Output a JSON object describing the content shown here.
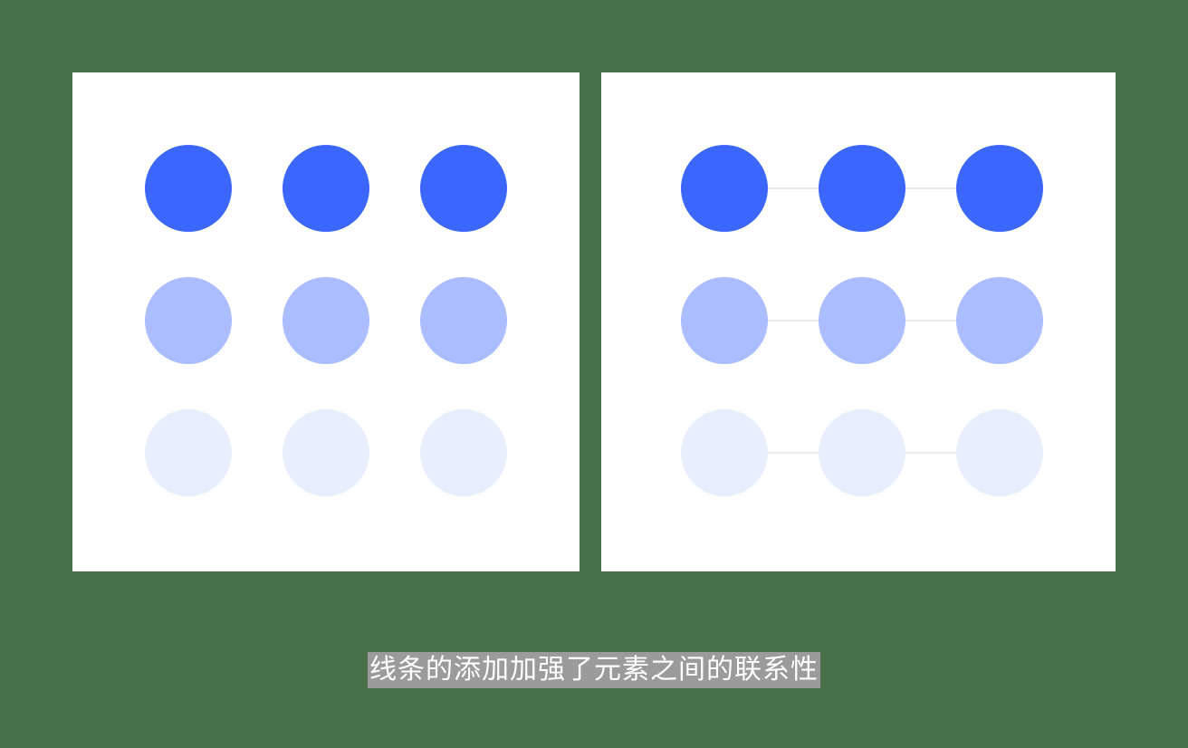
{
  "caption": "线条的添加加强了元素之间的联系性",
  "colors": {
    "background": "#48714b",
    "panel": "#ffffff",
    "connector": "#e3e3e3",
    "row_colors": [
      "#3c67ff",
      "#abbcff",
      "#e9eefe"
    ]
  },
  "grid": {
    "rows": 3,
    "columns": 3
  },
  "panels": [
    {
      "name": "without-lines",
      "connected": false
    },
    {
      "name": "with-lines",
      "connected": true
    }
  ]
}
